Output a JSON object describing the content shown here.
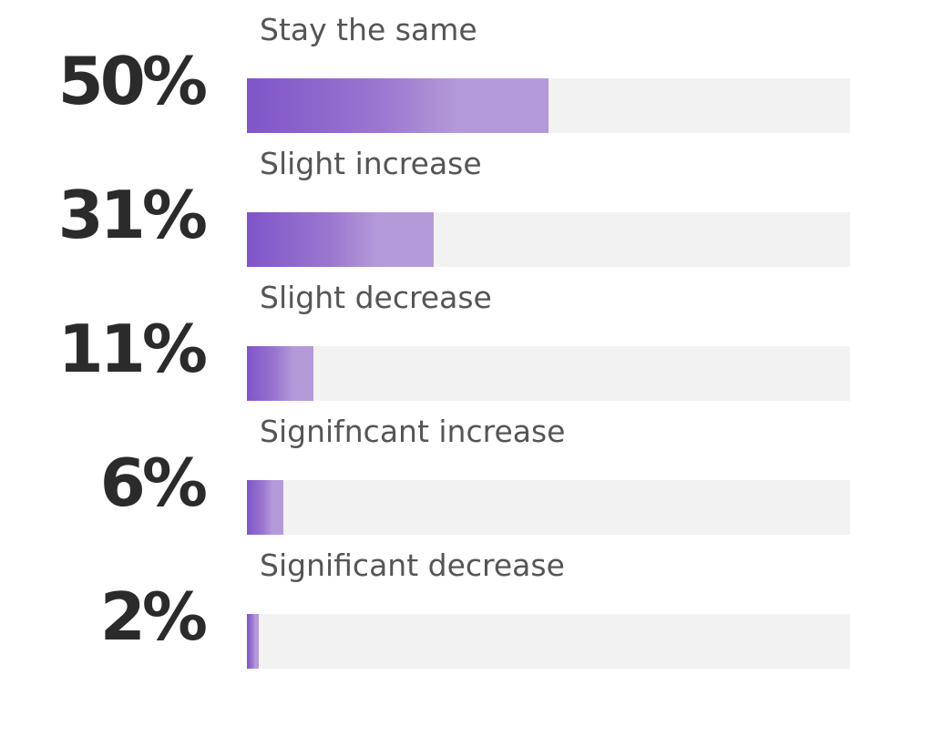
{
  "chart_data": {
    "type": "bar",
    "orientation": "horizontal",
    "categories": [
      "Stay the same",
      "Slight increase",
      "Slight decrease",
      "Signifncant increase",
      "Significant decrease"
    ],
    "values": [
      50,
      31,
      11,
      6,
      2
    ],
    "value_labels": [
      "50%",
      "31%",
      "11%",
      "6%",
      "2%"
    ],
    "xlim": [
      0,
      100
    ],
    "unit": "%",
    "grid": false,
    "legend": "none",
    "colors": {
      "bar_start": "#7f55c8",
      "bar_end": "#b49ad8",
      "track": "#f2f2f2",
      "value_text": "#2b2b2b",
      "label_text": "#555555"
    }
  }
}
